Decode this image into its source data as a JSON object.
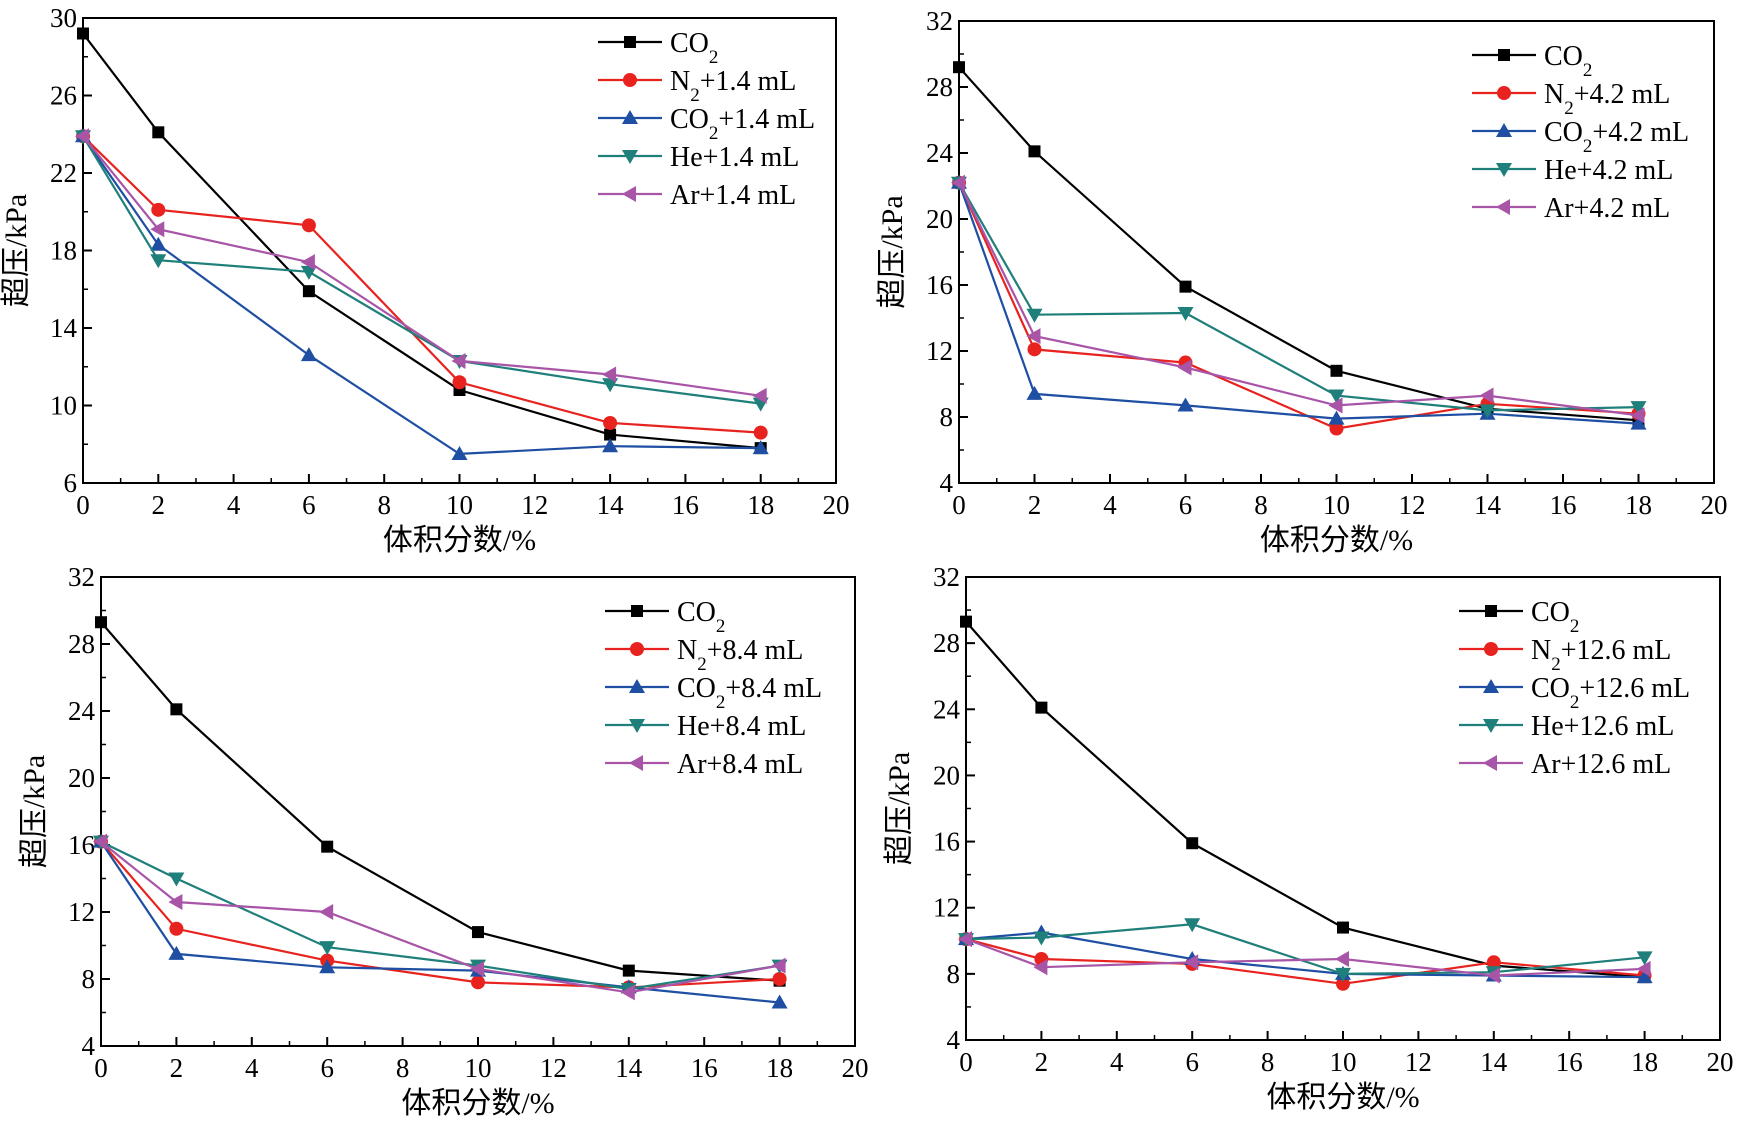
{
  "chart_data": [
    {
      "type": "line",
      "xlabel": "体积分数/%",
      "ylabel": "超压/kPa",
      "xlim": [
        0,
        20
      ],
      "ylim": [
        6,
        30
      ],
      "xticks": [
        0,
        2,
        4,
        6,
        8,
        10,
        12,
        14,
        16,
        18,
        20
      ],
      "yticks": [
        6,
        10,
        14,
        18,
        22,
        26,
        30
      ],
      "legend_position": "top-right",
      "x": [
        0,
        2,
        6,
        10,
        14,
        18
      ],
      "series": [
        {
          "name": "CO2",
          "label_main": "CO",
          "label_sub": "2",
          "label_tail": "",
          "color": "#000000",
          "marker": "square",
          "values": [
            29.2,
            24.1,
            15.9,
            10.8,
            8.5,
            7.8
          ]
        },
        {
          "name": "N2+1.4 mL",
          "label_main": "N",
          "label_sub": "2",
          "label_tail": "+1.4 mL",
          "color": "#e8231f",
          "marker": "circle",
          "values": [
            23.9,
            20.1,
            19.3,
            11.2,
            9.1,
            8.6
          ]
        },
        {
          "name": "CO2+1.4 mL",
          "label_main": "CO",
          "label_sub": "2",
          "label_tail": "+1.4 mL",
          "color": "#1f4fa3",
          "marker": "triangle-up",
          "values": [
            23.9,
            18.3,
            12.6,
            7.5,
            7.9,
            7.8
          ]
        },
        {
          "name": "He+1.4 mL",
          "label_main": "He+1.4 mL",
          "label_sub": "",
          "label_tail": "",
          "color": "#1f7f7a",
          "marker": "triangle-down",
          "values": [
            23.9,
            17.5,
            16.9,
            12.3,
            11.1,
            10.1
          ]
        },
        {
          "name": "Ar+1.4 mL",
          "label_main": "Ar+1.4 mL",
          "label_sub": "",
          "label_tail": "",
          "color": "#a855a8",
          "marker": "triangle-left",
          "values": [
            23.9,
            19.1,
            17.4,
            12.3,
            11.6,
            10.5
          ]
        }
      ]
    },
    {
      "type": "line",
      "xlabel": "体积分数/%",
      "ylabel": "超压/kPa",
      "xlim": [
        0,
        20
      ],
      "ylim": [
        4,
        32
      ],
      "xticks": [
        0,
        2,
        4,
        6,
        8,
        10,
        12,
        14,
        16,
        18,
        20
      ],
      "yticks": [
        4,
        8,
        12,
        16,
        20,
        24,
        28,
        32
      ],
      "legend_position": "top-right",
      "x": [
        0,
        2,
        6,
        10,
        14,
        18
      ],
      "series": [
        {
          "name": "CO2",
          "label_main": "CO",
          "label_sub": "2",
          "label_tail": "",
          "color": "#000000",
          "marker": "square",
          "values": [
            29.2,
            24.1,
            15.9,
            10.8,
            8.5,
            7.8
          ]
        },
        {
          "name": "N2+4.2 mL",
          "label_main": "N",
          "label_sub": "2",
          "label_tail": "+4.2 mL",
          "color": "#e8231f",
          "marker": "circle",
          "values": [
            22.2,
            12.1,
            11.3,
            7.3,
            8.8,
            8.2
          ]
        },
        {
          "name": "CO2+4.2 mL",
          "label_main": "CO",
          "label_sub": "2",
          "label_tail": "+4.2 mL",
          "color": "#1f4fa3",
          "marker": "triangle-up",
          "values": [
            22.2,
            9.4,
            8.7,
            7.9,
            8.2,
            7.6
          ]
        },
        {
          "name": "He+4.2 mL",
          "label_main": "He+4.2 mL",
          "label_sub": "",
          "label_tail": "",
          "color": "#1f7f7a",
          "marker": "triangle-down",
          "values": [
            22.2,
            14.2,
            14.3,
            9.3,
            8.4,
            8.6
          ]
        },
        {
          "name": "Ar+4.2 mL",
          "label_main": "Ar+4.2 mL",
          "label_sub": "",
          "label_tail": "",
          "color": "#a855a8",
          "marker": "triangle-left",
          "values": [
            22.2,
            12.9,
            11.0,
            8.7,
            9.3,
            8.1
          ]
        }
      ]
    },
    {
      "type": "line",
      "xlabel": "体积分数/%",
      "ylabel": "超压/kPa",
      "xlim": [
        0,
        20
      ],
      "ylim": [
        4,
        32
      ],
      "xticks": [
        0,
        2,
        4,
        6,
        8,
        10,
        12,
        14,
        16,
        18,
        20
      ],
      "yticks": [
        4,
        8,
        12,
        16,
        20,
        24,
        28,
        32
      ],
      "legend_position": "top-right",
      "x": [
        0,
        2,
        6,
        10,
        14,
        18
      ],
      "series": [
        {
          "name": "CO2",
          "label_main": "CO",
          "label_sub": "2",
          "label_tail": "",
          "color": "#000000",
          "marker": "square",
          "values": [
            29.3,
            24.1,
            15.9,
            10.8,
            8.5,
            7.9
          ]
        },
        {
          "name": "N2+8.4 mL",
          "label_main": "N",
          "label_sub": "2",
          "label_tail": "+8.4 mL",
          "color": "#e8231f",
          "marker": "circle",
          "values": [
            16.2,
            11.0,
            9.1,
            7.8,
            7.5,
            8.0
          ]
        },
        {
          "name": "CO2+8.4 mL",
          "label_main": "CO",
          "label_sub": "2",
          "label_tail": "+8.4 mL",
          "color": "#1f4fa3",
          "marker": "triangle-up",
          "values": [
            16.2,
            9.5,
            8.7,
            8.5,
            7.5,
            6.6
          ]
        },
        {
          "name": "He+8.4 mL",
          "label_main": "He+8.4 mL",
          "label_sub": "",
          "label_tail": "",
          "color": "#1f7f7a",
          "marker": "triangle-down",
          "values": [
            16.2,
            14.0,
            9.9,
            8.8,
            7.4,
            8.8
          ]
        },
        {
          "name": "Ar+8.4 mL",
          "label_main": "Ar+8.4 mL",
          "label_sub": "",
          "label_tail": "",
          "color": "#a855a8",
          "marker": "triangle-left",
          "values": [
            16.2,
            12.6,
            12.0,
            8.6,
            7.2,
            8.8
          ]
        }
      ]
    },
    {
      "type": "line",
      "xlabel": "体积分数/%",
      "ylabel": "超压/kPa",
      "xlim": [
        0,
        20
      ],
      "ylim": [
        4,
        32
      ],
      "xticks": [
        0,
        2,
        4,
        6,
        8,
        10,
        12,
        14,
        16,
        18,
        20
      ],
      "yticks": [
        4,
        8,
        12,
        16,
        20,
        24,
        28,
        32
      ],
      "legend_position": "top-right",
      "x": [
        0,
        2,
        6,
        10,
        14,
        18
      ],
      "series": [
        {
          "name": "CO2",
          "label_main": "CO",
          "label_sub": "2",
          "label_tail": "",
          "color": "#000000",
          "marker": "square",
          "values": [
            29.3,
            24.1,
            15.9,
            10.8,
            8.5,
            7.8
          ]
        },
        {
          "name": "N2+12.6 mL",
          "label_main": "N",
          "label_sub": "2",
          "label_tail": "+12.6 mL",
          "color": "#e8231f",
          "marker": "circle",
          "values": [
            10.1,
            8.9,
            8.6,
            7.4,
            8.7,
            7.9
          ]
        },
        {
          "name": "CO2+12.6 mL",
          "label_main": "CO",
          "label_sub": "2",
          "label_tail": "+12.6 mL",
          "color": "#1f4fa3",
          "marker": "triangle-up",
          "values": [
            10.1,
            10.5,
            8.9,
            8.0,
            7.9,
            7.8
          ]
        },
        {
          "name": "He+12.6 mL",
          "label_main": "He+12.6 mL",
          "label_sub": "",
          "label_tail": "",
          "color": "#1f7f7a",
          "marker": "triangle-down",
          "values": [
            10.1,
            10.2,
            11.0,
            8.0,
            8.1,
            9.0
          ]
        },
        {
          "name": "Ar+12.6 mL",
          "label_main": "Ar+12.6 mL",
          "label_sub": "",
          "label_tail": "",
          "color": "#a855a8",
          "marker": "triangle-left",
          "values": [
            10.1,
            8.4,
            8.7,
            8.9,
            7.9,
            8.3
          ]
        }
      ]
    }
  ]
}
